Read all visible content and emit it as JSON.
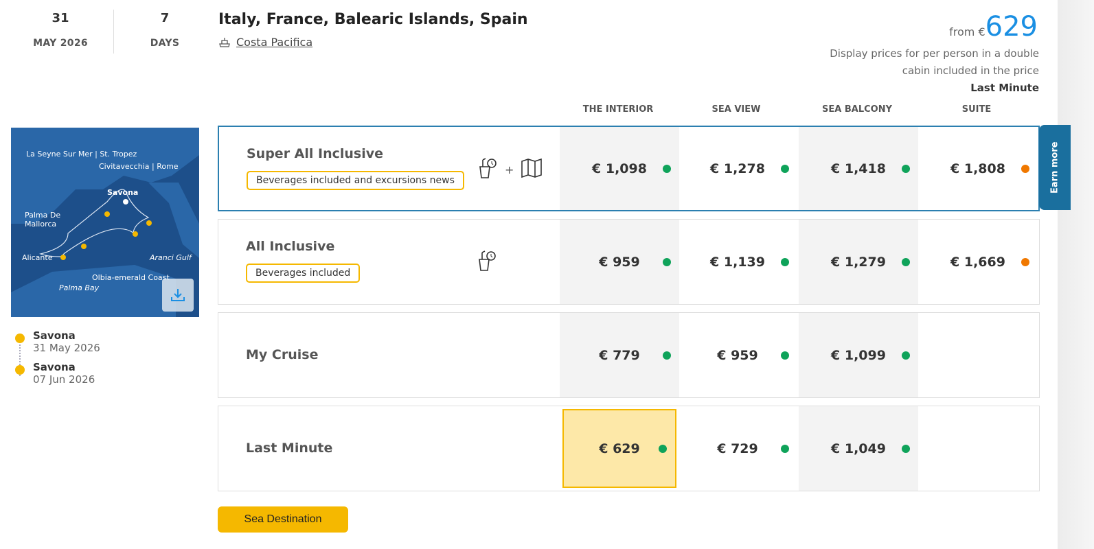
{
  "date": {
    "day": "31",
    "month": "MAY 2026"
  },
  "duration": {
    "value": "7",
    "unit": "DAYS"
  },
  "title": "Italy, France, Balearic Islands, Spain",
  "ship": "Costa Pacifica",
  "price": {
    "from_label": "from €",
    "value": "629",
    "note": "Display prices for per person in a double cabin included in the price",
    "fare": "Last Minute"
  },
  "columns": [
    "THE INTERIOR",
    "SEA VIEW",
    "SEA BALCONY",
    "SUITE"
  ],
  "earn_more": "Earn more",
  "colors": {
    "accent": "#1a8fe3",
    "available": "#0fa35a",
    "limited": "#f07800",
    "highlight": "#f5b800",
    "selected_border": "#2b7fb0"
  },
  "rows": [
    {
      "name": "Super All Inclusive",
      "tag": "Beverages included and excursions news",
      "icons": [
        "drinks-icon",
        "plus",
        "map-icon"
      ],
      "prices": [
        {
          "v": "€ 1,098",
          "s": "available"
        },
        {
          "v": "€ 1,278",
          "s": "available"
        },
        {
          "v": "€ 1,418",
          "s": "available"
        },
        {
          "v": "€ 1,808",
          "s": "limited"
        }
      ]
    },
    {
      "name": "All Inclusive",
      "tag": "Beverages included",
      "icons": [
        "drinks-icon"
      ],
      "prices": [
        {
          "v": "€ 959",
          "s": "available"
        },
        {
          "v": "€ 1,139",
          "s": "available"
        },
        {
          "v": "€ 1,279",
          "s": "available"
        },
        {
          "v": "€ 1,669",
          "s": "limited"
        }
      ]
    },
    {
      "name": "My Cruise",
      "prices": [
        {
          "v": "€ 779",
          "s": "available"
        },
        {
          "v": "€ 959",
          "s": "available"
        },
        {
          "v": "€ 1,099",
          "s": "available"
        }
      ]
    },
    {
      "name": "Last Minute",
      "prices": [
        {
          "v": "€ 629",
          "s": "available",
          "selected": true
        },
        {
          "v": "€ 729",
          "s": "available"
        },
        {
          "v": "€ 1,049",
          "s": "available"
        }
      ]
    }
  ],
  "map_labels": [
    "La Seyne Sur Mer | St. Tropez",
    "Civitavecchia | Rome",
    "Savona",
    "Palma De Mallorca",
    "Alicante",
    "Aranci Gulf",
    "Olbia-emerald Coast",
    "Palma Bay"
  ],
  "itinerary": [
    {
      "port": "Savona",
      "date": "31 May 2026"
    },
    {
      "port": "Savona",
      "date": "07 Jun 2026"
    }
  ],
  "cta": "Sea Destination"
}
